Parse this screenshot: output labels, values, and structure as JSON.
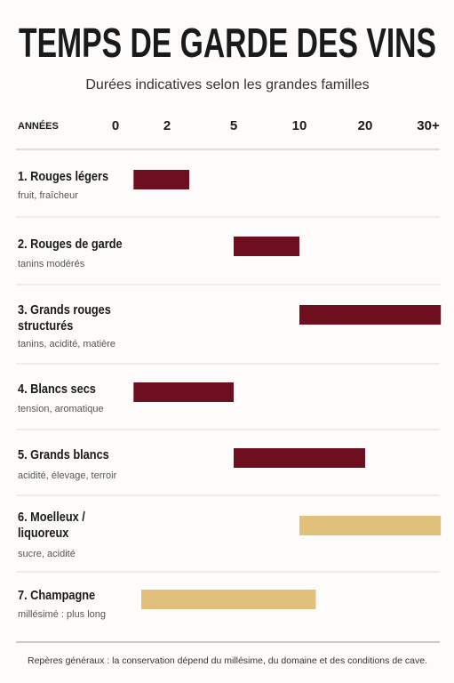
{
  "chart_data": {
    "type": "range-bar",
    "title": "TEMPS DE GARDE DES VINS",
    "subtitle": "Durées indicatives selon les grandes familles",
    "axis_label": "ANNÉES",
    "xticks": [
      0,
      2,
      5,
      10,
      20,
      {
        "value": 30,
        "label": "30+"
      }
    ],
    "categories": [
      "1. Rouges légers",
      "2. Rouges de garde",
      "3. Grands rouges structurés",
      "4. Blancs secs",
      "5. Grands blancs",
      "6. Moelleux / liquoreux",
      "7. Champagne"
    ],
    "descriptions": [
      "fruit, fraîcheur",
      "tanins modérés",
      "tanins, acidité, matière",
      "tension, aromatique",
      "acidité, élevage, terroir",
      "sucre, acidité",
      "millésimé : plus long"
    ],
    "starts": [
      0.7,
      5,
      10,
      0.7,
      5,
      10,
      1
    ],
    "ends": [
      3,
      10,
      32,
      5,
      20,
      32,
      12.5
    ],
    "colors": [
      "#6e0f1f",
      "#6e0f1f",
      "#6e0f1f",
      "#6e0f1f",
      "#6e0f1f",
      "#e0c07a",
      "#e0c07a"
    ],
    "grid": true,
    "footnote": "Repères généraux : la conservation dépend du millésime, du domaine et des conditions de cave."
  }
}
